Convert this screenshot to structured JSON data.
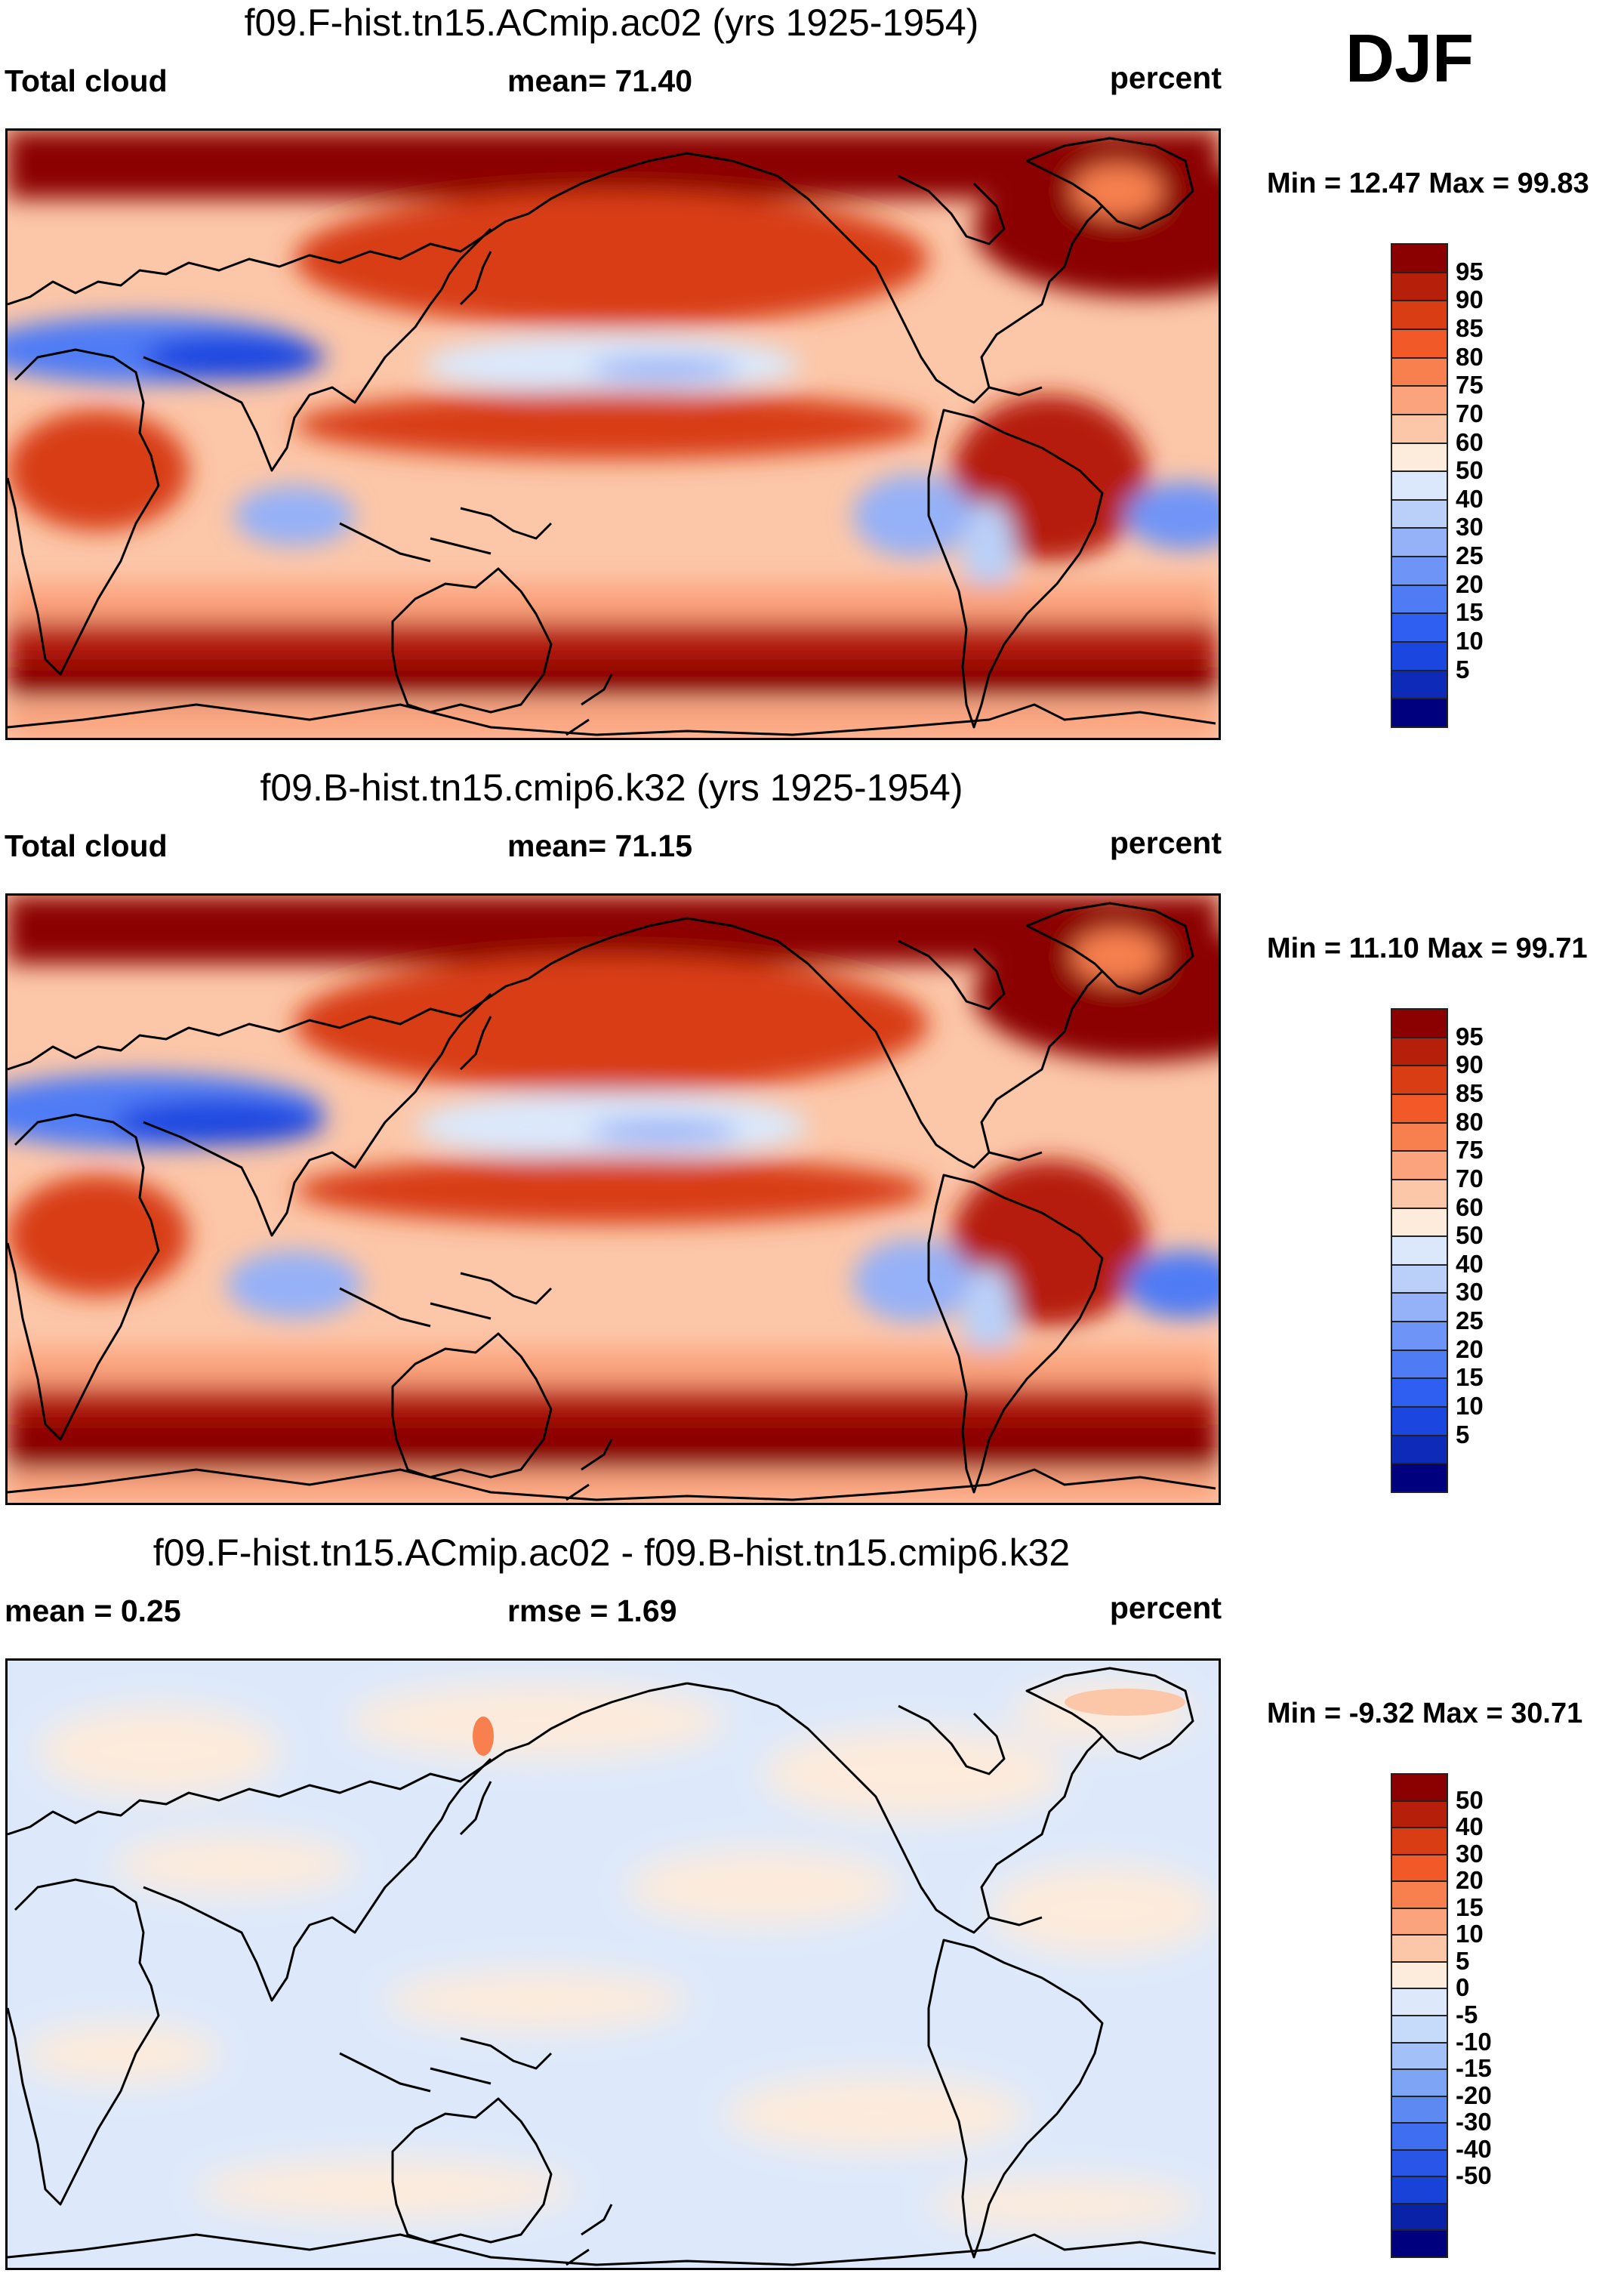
{
  "season": "DJF",
  "colors": {
    "cloud_scale": [
      "#00007f",
      "#0d2bb8",
      "#1b46e0",
      "#2f5ff0",
      "#4f7bf5",
      "#6f94f7",
      "#95b1f7",
      "#bad0f8",
      "#dbe8fb",
      "#fdebdc",
      "#fcc6a8",
      "#fba37d",
      "#f8804f",
      "#f15a28",
      "#d83d13",
      "#b61f0a",
      "#8b0000"
    ],
    "diff_scale": [
      "#00007f",
      "#0a22a8",
      "#1842d8",
      "#2a56e8",
      "#3f6ef0",
      "#5d89f3",
      "#7ea4f6",
      "#a4c0f8",
      "#c6dafa",
      "#dde9fb",
      "#fdebdc",
      "#fcc6a8",
      "#fba37d",
      "#f8804f",
      "#f15a28",
      "#d83d13",
      "#b61f0a",
      "#8b0000"
    ]
  },
  "panels": [
    {
      "title": "f09.F-hist.tn15.ACmip.ac02 (yrs 1925-1954)",
      "left_label": "Total cloud",
      "center_label": "mean=  71.40",
      "units": "percent",
      "minmax": "Min =  12.47 Max =  99.83",
      "ticks": [
        "95",
        "90",
        "85",
        "80",
        "75",
        "70",
        "60",
        "50",
        "40",
        "30",
        "25",
        "20",
        "15",
        "10",
        "5"
      ]
    },
    {
      "title": "f09.B-hist.tn15.cmip6.k32 (yrs 1925-1954)",
      "left_label": "Total cloud",
      "center_label": "mean=  71.15",
      "units": "percent",
      "minmax": "Min =  11.10 Max =  99.71",
      "ticks": [
        "95",
        "90",
        "85",
        "80",
        "75",
        "70",
        "60",
        "50",
        "40",
        "30",
        "25",
        "20",
        "15",
        "10",
        "5"
      ]
    },
    {
      "title": "f09.F-hist.tn15.ACmip.ac02 - f09.B-hist.tn15.cmip6.k32",
      "left_label": "mean =   0.25",
      "center_label": "rmse =   1.69",
      "units": "percent",
      "minmax": "Min =  -9.32 Max =  30.71",
      "ticks": [
        "50",
        "40",
        "30",
        "20",
        "15",
        "10",
        "5",
        "0",
        "-5",
        "-10",
        "-15",
        "-20",
        "-30",
        "-40",
        "-50"
      ]
    }
  ]
}
